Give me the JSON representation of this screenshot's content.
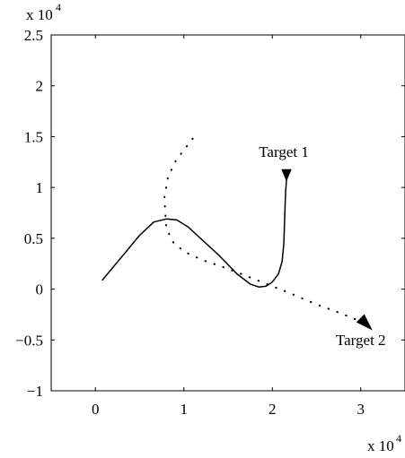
{
  "chart_data": {
    "type": "line",
    "title": "",
    "xlabel": "",
    "ylabel": "",
    "xlim": [
      -0.5,
      3.5
    ],
    "ylim": [
      -1,
      2.5
    ],
    "x_ticks": [
      0,
      1,
      2,
      3
    ],
    "x_tick_labels": [
      "0",
      "1",
      "2",
      "3"
    ],
    "y_ticks": [
      -1,
      -0.5,
      0,
      0.5,
      1,
      1.5,
      2,
      2.5
    ],
    "y_tick_labels": [
      "−1",
      "−0.5",
      "0",
      "0.5",
      "1",
      "1.5",
      "2",
      "2.5"
    ],
    "x_multiplier_label": "x 10",
    "x_multiplier_exponent": "4",
    "y_multiplier_label": "x 10",
    "y_multiplier_exponent": "4",
    "grid": false,
    "series": [
      {
        "style": "solid",
        "color": "#000000",
        "x": [
          0.08,
          0.3,
          0.5,
          0.66,
          0.8,
          0.92,
          1.05,
          1.2,
          1.4,
          1.6,
          1.75,
          1.85,
          1.93,
          2.0,
          2.07,
          2.11,
          2.13,
          2.14,
          2.15,
          2.16
        ],
        "y": [
          0.09,
          0.32,
          0.53,
          0.66,
          0.69,
          0.68,
          0.61,
          0.49,
          0.33,
          0.15,
          0.05,
          0.02,
          0.03,
          0.07,
          0.15,
          0.27,
          0.45,
          0.7,
          0.95,
          1.07
        ]
      },
      {
        "style": "dotted",
        "color": "#000000",
        "x": [
          1.1,
          1.0,
          0.9,
          0.82,
          0.78,
          0.8,
          0.88,
          1.0,
          1.2,
          1.5,
          1.85,
          2.2,
          2.5,
          2.75,
          2.95,
          3.08
        ],
        "y": [
          1.48,
          1.37,
          1.25,
          1.1,
          0.9,
          0.6,
          0.46,
          0.37,
          0.29,
          0.2,
          0.08,
          -0.04,
          -0.15,
          -0.23,
          -0.3,
          -0.36
        ]
      }
    ],
    "annotations": [
      {
        "text": "Target 1",
        "x": 2.13,
        "y": 1.3,
        "anchor": "middle"
      },
      {
        "text": "Target 2",
        "x": 3.0,
        "y": -0.55,
        "anchor": "middle"
      }
    ],
    "markers": [
      {
        "name": "target-1-marker",
        "x": 2.16,
        "y": 1.07,
        "direction": "down"
      },
      {
        "name": "target-2-marker",
        "x": 3.08,
        "y": -0.36,
        "direction": "down-right"
      }
    ]
  }
}
